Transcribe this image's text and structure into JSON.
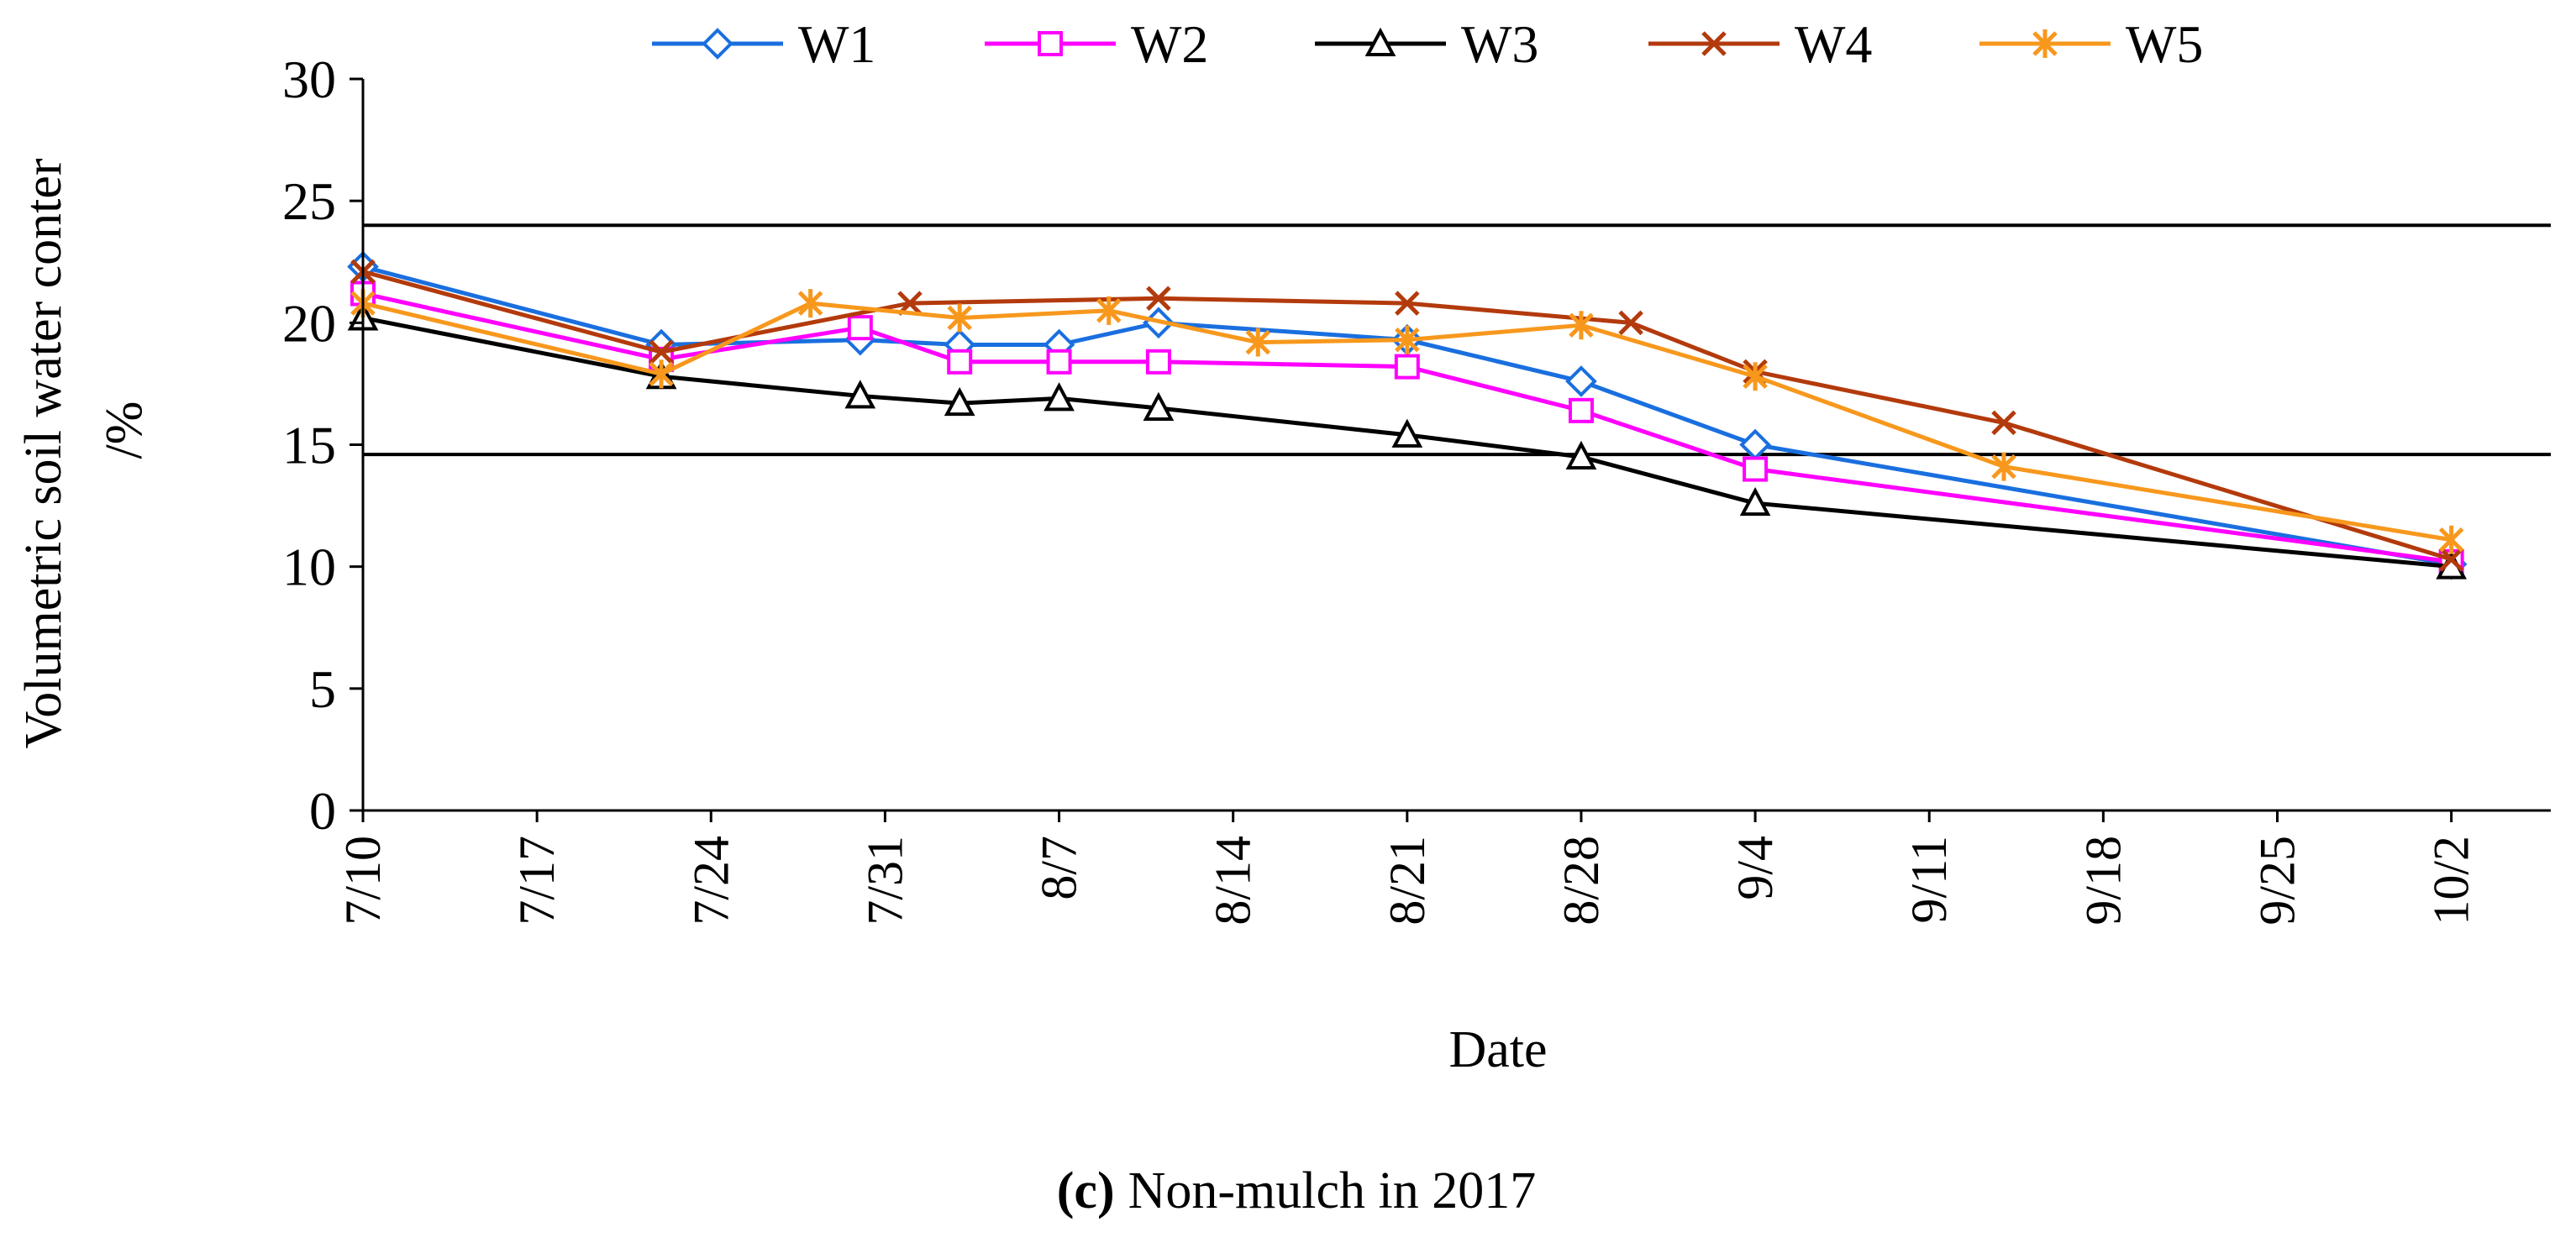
{
  "chart_data": {
    "type": "line",
    "xlabel": "Date",
    "ylabel_line1": "Volumetric soil water conter",
    "ylabel_line2": "/%",
    "caption_label": "(c)",
    "caption_text": "Non-mulch in 2017",
    "ylim": [
      0,
      30
    ],
    "yticks": [
      0,
      5,
      10,
      15,
      20,
      25,
      30
    ],
    "x_axis_start": "7/10",
    "x_axis_end_day": 88,
    "xticks": [
      {
        "day": 0,
        "label": "7/10"
      },
      {
        "day": 7,
        "label": "7/17"
      },
      {
        "day": 14,
        "label": "7/24"
      },
      {
        "day": 21,
        "label": "7/31"
      },
      {
        "day": 28,
        "label": "8/7"
      },
      {
        "day": 35,
        "label": "8/14"
      },
      {
        "day": 42,
        "label": "8/21"
      },
      {
        "day": 49,
        "label": "8/28"
      },
      {
        "day": 56,
        "label": "9/4"
      },
      {
        "day": 63,
        "label": "9/11"
      },
      {
        "day": 70,
        "label": "9/18"
      },
      {
        "day": 77,
        "label": "9/25"
      },
      {
        "day": 84,
        "label": "10/2"
      }
    ],
    "reference_lines": [
      24,
      14.6
    ],
    "legend_position": "top",
    "series": [
      {
        "name": "W1",
        "color": "#1a6fdf",
        "marker": "diamond",
        "x": [
          0,
          12,
          20,
          24,
          28,
          32,
          42,
          49,
          56,
          84
        ],
        "y": [
          22.3,
          19.1,
          19.3,
          19.1,
          19.1,
          20.0,
          19.3,
          17.6,
          15.0,
          10.1
        ]
      },
      {
        "name": "W2",
        "color": "#ff00ff",
        "marker": "square",
        "x": [
          0,
          12,
          20,
          24,
          28,
          32,
          42,
          49,
          56,
          84
        ],
        "y": [
          21.2,
          18.5,
          19.8,
          18.4,
          18.4,
          18.4,
          18.2,
          16.4,
          14.0,
          10.2
        ]
      },
      {
        "name": "W3",
        "color": "#000000",
        "marker": "triangle",
        "x": [
          0,
          12,
          20,
          24,
          28,
          32,
          42,
          49,
          56,
          84
        ],
        "y": [
          20.2,
          17.8,
          17.0,
          16.7,
          16.9,
          16.5,
          15.4,
          14.5,
          12.6,
          10.0
        ]
      },
      {
        "name": "W4",
        "color": "#b33a0c",
        "marker": "x",
        "x": [
          0,
          12,
          22,
          32,
          42,
          51,
          56,
          66,
          84
        ],
        "y": [
          22.1,
          18.8,
          20.8,
          21.0,
          20.8,
          20.0,
          18.0,
          15.9,
          10.3
        ]
      },
      {
        "name": "W5",
        "color": "#f7981d",
        "marker": "asterisk",
        "x": [
          0,
          12,
          18,
          24,
          30,
          36,
          42,
          49,
          56,
          66,
          84
        ],
        "y": [
          20.8,
          17.9,
          20.8,
          20.2,
          20.5,
          19.2,
          19.3,
          19.9,
          17.8,
          14.1,
          11.1
        ]
      }
    ]
  }
}
